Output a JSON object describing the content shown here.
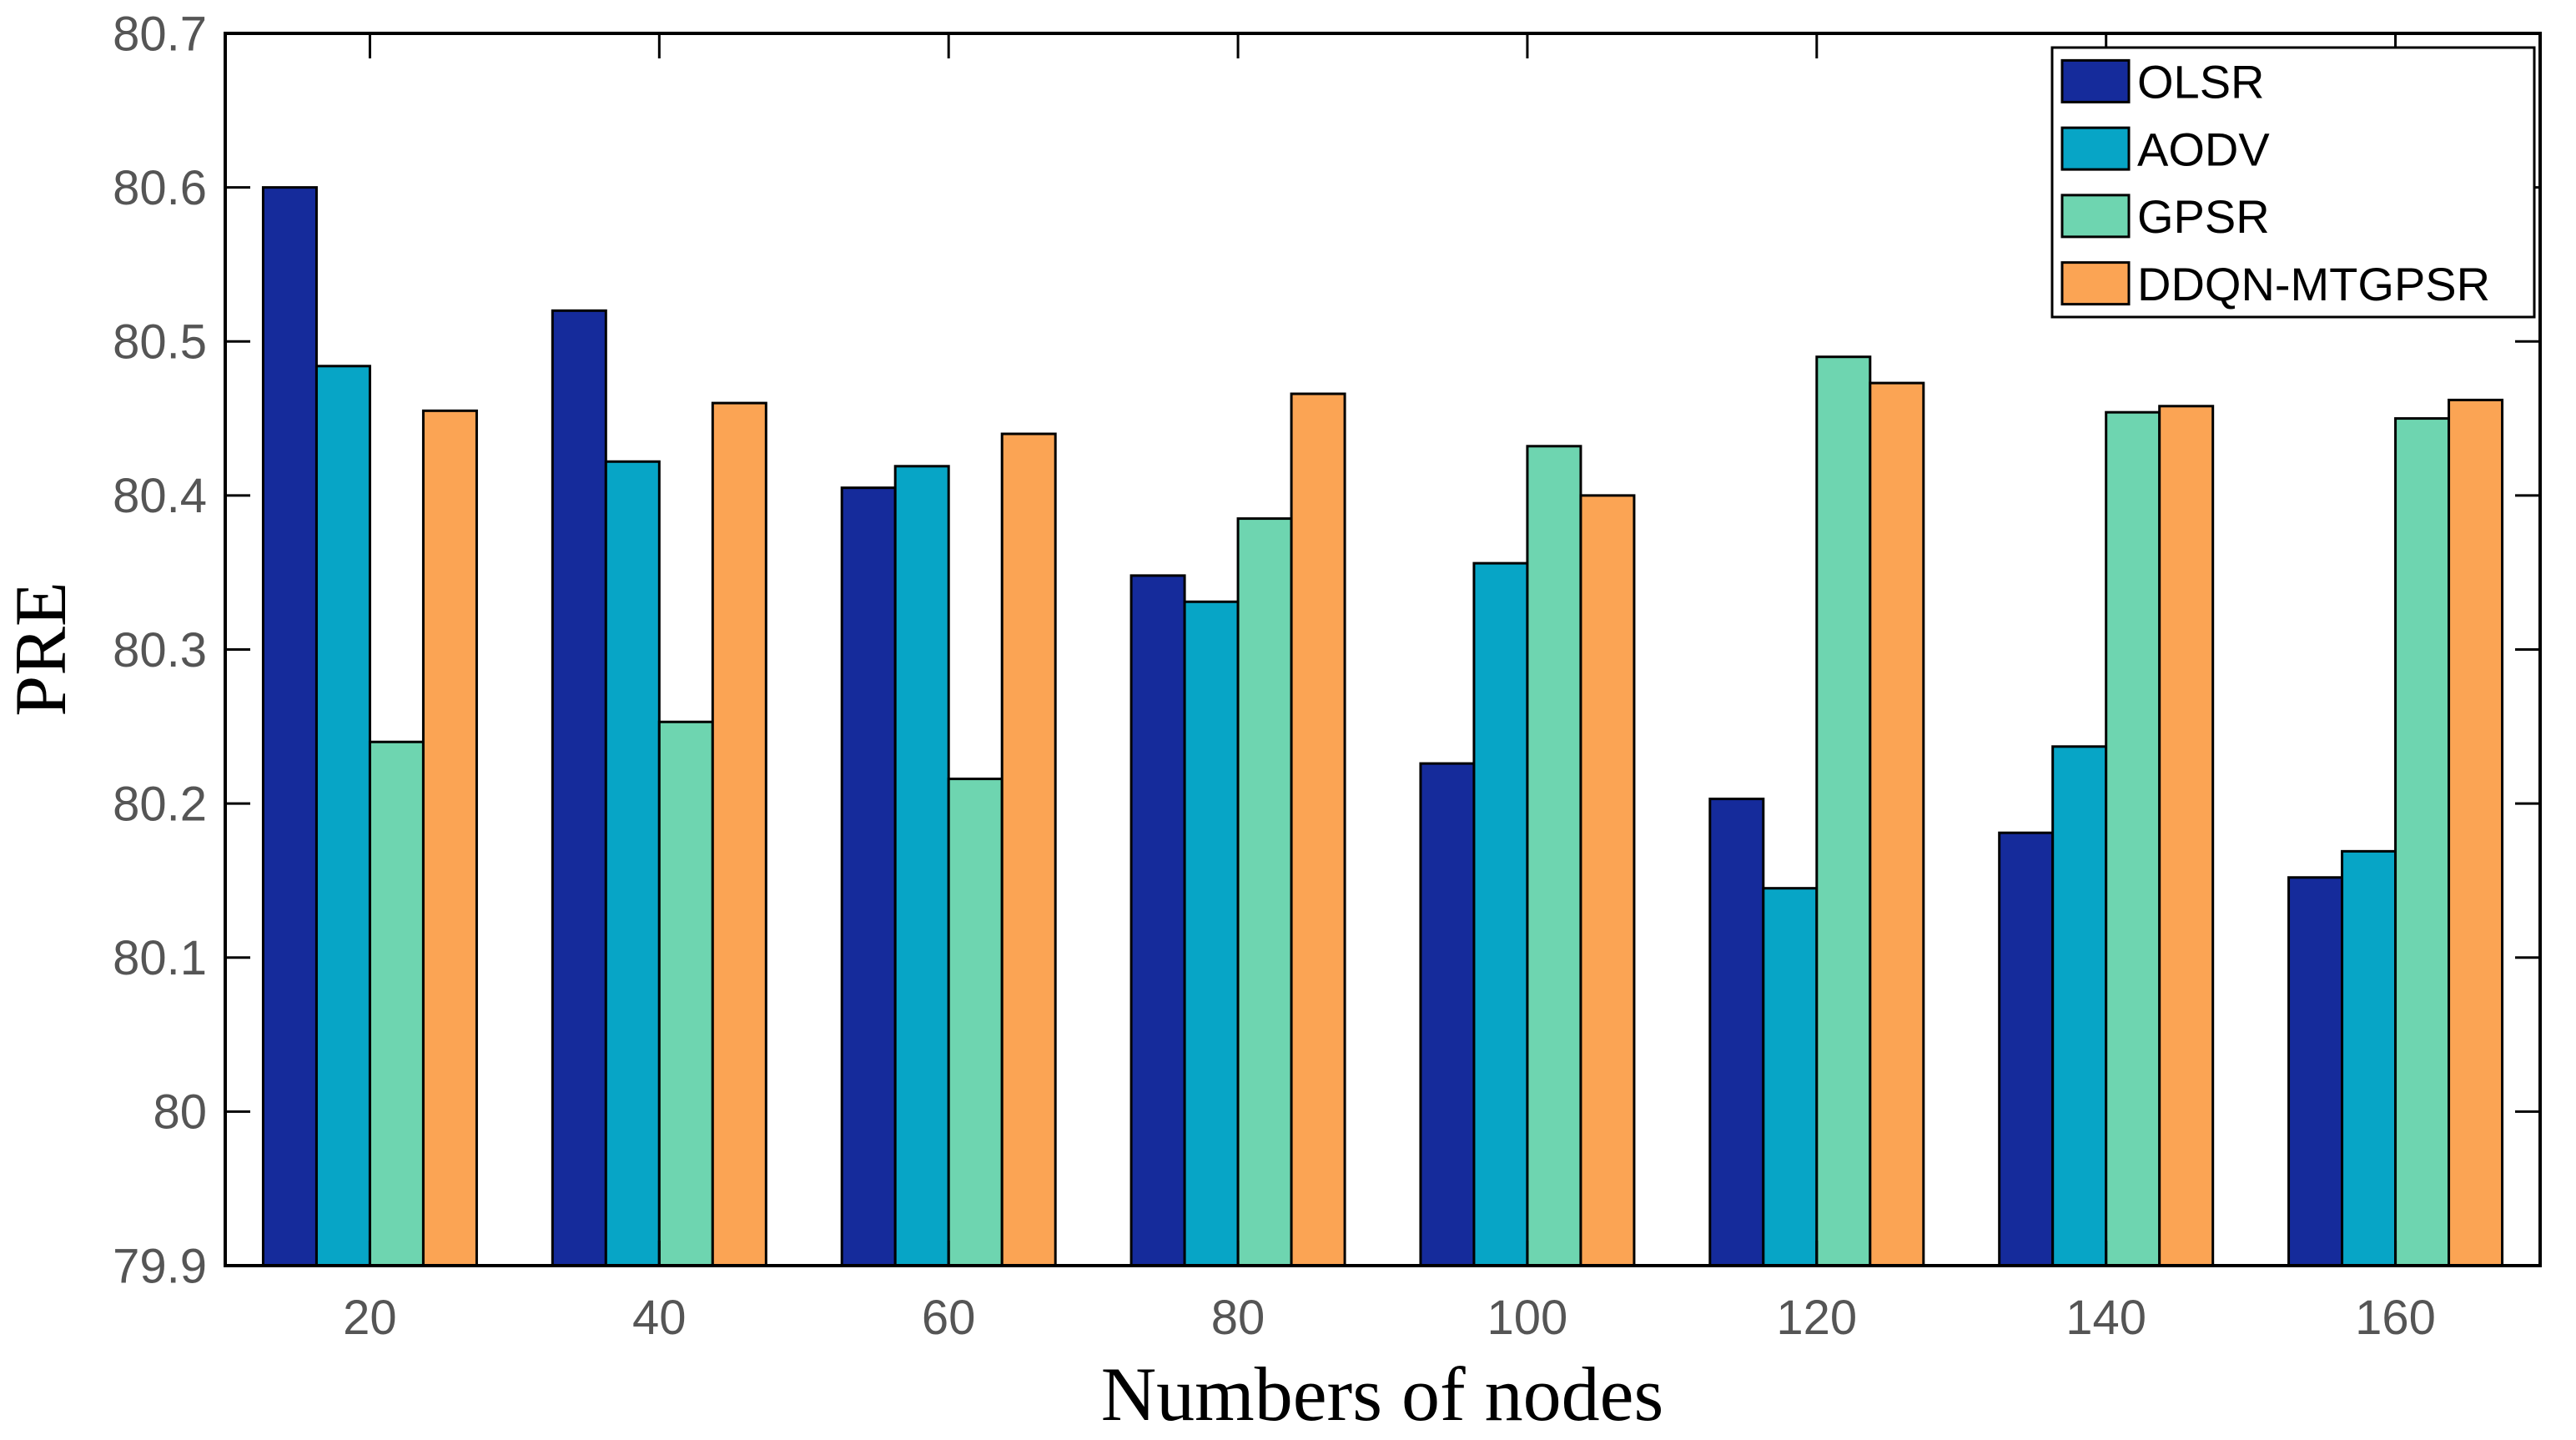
{
  "figure": {
    "background_color": "#ffffff",
    "axis_line_color": "#000000",
    "tick_label_color": "#555555"
  },
  "chart_data": {
    "type": "bar",
    "title": "",
    "xlabel": "Numbers of nodes",
    "ylabel": "PRE",
    "categories": [
      "20",
      "40",
      "60",
      "80",
      "100",
      "120",
      "140",
      "160"
    ],
    "series": [
      {
        "name": "OLSR",
        "color": "#152B9B",
        "values": [
          80.6,
          80.52,
          80.405,
          80.348,
          80.226,
          80.203,
          80.181,
          80.152
        ]
      },
      {
        "name": "AODV",
        "color": "#07A5C6",
        "values": [
          80.484,
          80.422,
          80.419,
          80.331,
          80.356,
          80.145,
          80.237,
          80.169
        ]
      },
      {
        "name": "GPSR",
        "color": "#6ED5B0",
        "values": [
          80.24,
          80.253,
          80.216,
          80.385,
          80.432,
          80.49,
          80.454,
          80.45
        ]
      },
      {
        "name": "DDQN-MTGPSR",
        "color": "#FBA454",
        "values": [
          80.455,
          80.46,
          80.44,
          80.466,
          80.4,
          80.473,
          80.458,
          80.462
        ]
      }
    ],
    "ylim": [
      79.9,
      80.7
    ],
    "ytick_step": 0.1,
    "ytick_labels": [
      "79.9",
      "80",
      "80.1",
      "80.2",
      "80.3",
      "80.4",
      "80.5",
      "80.6",
      "80.7"
    ],
    "bar_edge_color": "#000000",
    "grid": false,
    "legend_position": "top-right",
    "legend_border_color": "#000000",
    "legend_background": "#ffffff"
  }
}
